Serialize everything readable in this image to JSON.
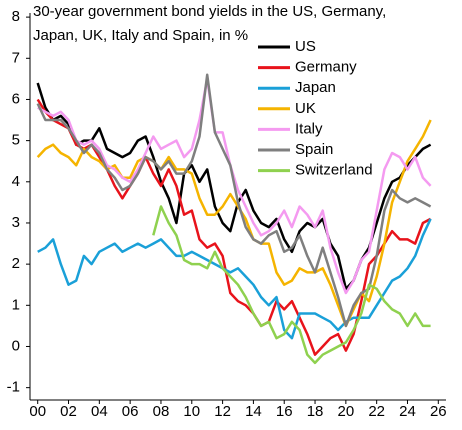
{
  "chart_data": {
    "type": "line",
    "title": [
      "30-year government bond yields in the US, Germany,",
      "Japan, UK, Italy and Spain, in %"
    ],
    "x": [
      2000,
      2000.5,
      2001,
      2001.5,
      2002,
      2002.5,
      2003,
      2003.5,
      2004,
      2004.5,
      2005,
      2005.5,
      2006,
      2006.5,
      2007,
      2007.5,
      2008,
      2008.5,
      2009,
      2009.5,
      2010,
      2010.5,
      2011,
      2011.5,
      2012,
      2012.5,
      2013,
      2013.5,
      2014,
      2014.5,
      2015,
      2015.5,
      2016,
      2016.5,
      2017,
      2017.5,
      2018,
      2018.5,
      2019,
      2019.5,
      2020,
      2020.5,
      2021,
      2021.5,
      2022,
      2022.5,
      2023,
      2023.5,
      2024,
      2024.5,
      2025,
      2025.5
    ],
    "series": [
      {
        "name": "US",
        "color": "#000000",
        "values": [
          6.4,
          5.8,
          5.5,
          5.6,
          5.4,
          4.9,
          5.0,
          5.0,
          5.3,
          4.8,
          4.7,
          4.6,
          4.7,
          5.0,
          5.1,
          4.6,
          4.0,
          3.6,
          3.0,
          4.2,
          4.4,
          4.0,
          4.3,
          3.4,
          3.0,
          2.8,
          3.5,
          3.8,
          3.3,
          3.0,
          2.9,
          3.1,
          2.6,
          2.3,
          2.8,
          3.0,
          2.9,
          3.1,
          2.5,
          2.2,
          1.4,
          1.6,
          2.1,
          2.4,
          3.0,
          3.6,
          4.0,
          4.1,
          4.4,
          4.6,
          4.8,
          4.9
        ]
      },
      {
        "name": "Germany",
        "color": "#e8131b",
        "values": [
          6.0,
          5.7,
          5.5,
          5.4,
          5.3,
          4.9,
          4.8,
          4.9,
          4.6,
          4.3,
          3.9,
          3.6,
          3.9,
          4.2,
          4.6,
          4.2,
          3.9,
          4.3,
          3.9,
          3.2,
          3.3,
          2.6,
          2.4,
          2.5,
          2.2,
          1.3,
          1.1,
          1.0,
          0.8,
          0.5,
          0.6,
          1.1,
          0.9,
          1.1,
          0.7,
          0.3,
          -0.2,
          0.0,
          0.2,
          0.3,
          -0.1,
          0.3,
          1.1,
          2.0,
          2.2,
          2.5,
          2.8,
          2.6,
          2.6,
          2.5,
          3.0,
          3.1
        ]
      },
      {
        "name": "Japan",
        "color": "#1aa0d8",
        "values": [
          2.3,
          2.4,
          2.6,
          2.0,
          1.5,
          1.6,
          2.2,
          2.0,
          2.3,
          2.4,
          2.5,
          2.3,
          2.4,
          2.5,
          2.4,
          2.5,
          2.6,
          2.4,
          2.2,
          2.2,
          2.3,
          2.2,
          2.1,
          2.0,
          1.9,
          1.8,
          1.9,
          1.7,
          1.5,
          1.2,
          1.0,
          1.2,
          0.4,
          0.2,
          0.8,
          0.8,
          0.8,
          0.7,
          0.6,
          0.4,
          0.6,
          0.7,
          0.7,
          0.7,
          1.0,
          1.3,
          1.6,
          1.7,
          1.9,
          2.2,
          2.7,
          3.1
        ]
      },
      {
        "name": "UK",
        "color": "#f5b400",
        "values": [
          4.6,
          4.8,
          4.9,
          4.7,
          4.6,
          4.4,
          4.8,
          4.6,
          4.5,
          4.3,
          4.4,
          4.1,
          4.1,
          4.5,
          4.6,
          4.5,
          4.3,
          4.6,
          4.3,
          4.3,
          4.2,
          3.6,
          3.2,
          3.2,
          3.4,
          3.7,
          3.4,
          3.1,
          2.6,
          2.5,
          2.5,
          1.8,
          1.5,
          1.6,
          1.9,
          1.8,
          1.8,
          1.9,
          1.5,
          1.0,
          0.5,
          0.9,
          1.3,
          1.1,
          1.7,
          2.5,
          3.5,
          4.0,
          4.5,
          4.8,
          5.1,
          5.5
        ]
      },
      {
        "name": "Italy",
        "color": "#f49af0",
        "values": [
          5.8,
          5.7,
          5.6,
          5.7,
          5.5,
          5.0,
          4.9,
          5.0,
          4.8,
          4.4,
          4.3,
          4.1,
          4.0,
          4.3,
          4.7,
          5.1,
          4.8,
          4.9,
          5.0,
          4.6,
          4.8,
          5.5,
          6.5,
          5.2,
          5.2,
          4.4,
          3.8,
          3.4,
          3.0,
          2.7,
          2.8,
          3.0,
          3.3,
          2.9,
          3.4,
          3.2,
          2.9,
          3.3,
          2.4,
          1.8,
          1.3,
          1.6,
          2.1,
          2.3,
          3.3,
          4.3,
          4.7,
          4.6,
          4.3,
          4.6,
          4.1,
          3.9
        ]
      },
      {
        "name": "Spain",
        "color": "#7f7f7f",
        "values": [
          5.9,
          5.5,
          5.5,
          5.5,
          5.3,
          5.0,
          4.7,
          4.9,
          4.7,
          4.3,
          4.1,
          3.8,
          3.9,
          4.2,
          4.6,
          4.5,
          4.3,
          4.5,
          4.2,
          4.2,
          4.5,
          5.1,
          6.6,
          5.2,
          4.8,
          4.4,
          3.5,
          2.9,
          2.6,
          2.5,
          2.7,
          2.8,
          2.3,
          2.4,
          2.7,
          2.2,
          1.8,
          2.4,
          1.8,
          1.2,
          0.5,
          1.0,
          1.3,
          1.4,
          2.2,
          3.3,
          3.8,
          3.6,
          3.5,
          3.6,
          3.5,
          3.4
        ]
      },
      {
        "name": "Switzerland",
        "color": "#8fd14f",
        "values": [
          null,
          null,
          null,
          null,
          null,
          null,
          null,
          null,
          null,
          null,
          null,
          null,
          null,
          null,
          null,
          2.7,
          3.4,
          3.0,
          2.7,
          2.1,
          2.0,
          2.0,
          1.9,
          2.3,
          1.9,
          1.7,
          1.5,
          1.2,
          0.8,
          0.5,
          0.6,
          0.2,
          0.3,
          0.6,
          0.4,
          -0.2,
          -0.4,
          -0.2,
          -0.1,
          0.0,
          0.1,
          0.4,
          0.8,
          1.5,
          1.4,
          1.1,
          0.9,
          0.8,
          0.5,
          0.8,
          0.5,
          0.5
        ]
      }
    ],
    "xlim": [
      1999.5,
      2026.5
    ],
    "xticks": [
      {
        "value": 2000,
        "label": "00"
      },
      {
        "value": 2002,
        "label": "02"
      },
      {
        "value": 2004,
        "label": "04"
      },
      {
        "value": 2006,
        "label": "06"
      },
      {
        "value": 2008,
        "label": "08"
      },
      {
        "value": 2010,
        "label": "10"
      },
      {
        "value": 2012,
        "label": "12"
      },
      {
        "value": 2014,
        "label": "14"
      },
      {
        "value": 2016,
        "label": "16"
      },
      {
        "value": 2018,
        "label": "18"
      },
      {
        "value": 2020,
        "label": "20"
      },
      {
        "value": 2022,
        "label": "22"
      },
      {
        "value": 2024,
        "label": "24"
      },
      {
        "value": 2026,
        "label": "26"
      }
    ],
    "ylim": [
      -1.3,
      8.1
    ],
    "yticks": [
      8,
      7,
      6,
      5,
      4,
      3,
      2,
      1,
      0,
      -1
    ],
    "grid": false,
    "legend": "top-right"
  }
}
